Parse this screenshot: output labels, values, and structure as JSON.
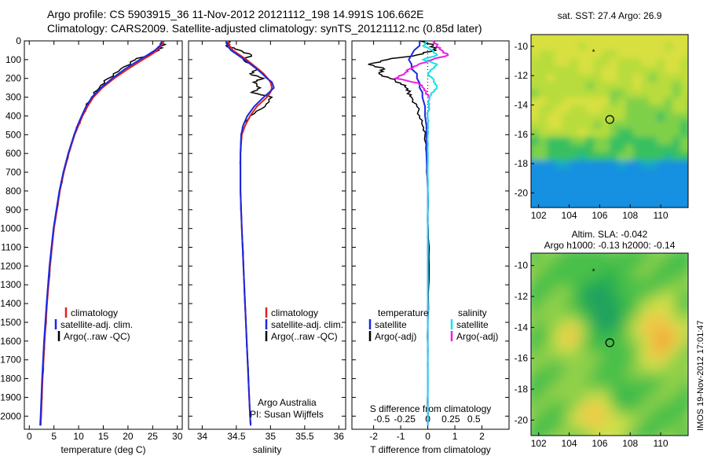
{
  "header": {
    "line1": "Argo profile: CS 5903915_36 11-Nov-2012 20121112_198 14.991S 106.662E",
    "line2": "Climatology: CARS2009. Satellite-adjusted climatology: synTS_20121112.nc (0.85d later)"
  },
  "colors": {
    "climatology": "#e0201a",
    "satellite": "#1a28e0",
    "argo": "#000000",
    "satellite_salinity": "#18e0e8",
    "argo_adj_salinity": "#e820e0"
  },
  "chart_data": [
    {
      "type": "line",
      "name": "temperature-profile",
      "xlabel": "temperature (deg C)",
      "xlim": [
        -1,
        31
      ],
      "xticks": [
        "0",
        "5",
        "10",
        "15",
        "20",
        "25",
        "30"
      ],
      "ylim": [
        2070,
        0
      ],
      "yticks": [
        "0",
        "100",
        "200",
        "300",
        "400",
        "500",
        "600",
        "700",
        "800",
        "900",
        "1000",
        "1100",
        "1200",
        "1300",
        "1400",
        "1500",
        "1600",
        "1700",
        "1800",
        "1900",
        "2000"
      ],
      "legend": [
        "climatology",
        "satellite-adj. clim.",
        "Argo(..raw -QC)"
      ],
      "depth": [
        0,
        25,
        50,
        75,
        100,
        150,
        200,
        250,
        300,
        350,
        400,
        450,
        500,
        600,
        700,
        800,
        900,
        1000,
        1200,
        1400,
        1600,
        1800,
        2000,
        2050
      ],
      "series": [
        {
          "name": "climatology",
          "values": [
            27.2,
            26.8,
            26.0,
            24.6,
            23.0,
            20.0,
            17.2,
            14.8,
            13.0,
            11.8,
            10.8,
            10.0,
            9.2,
            8.0,
            7.0,
            6.2,
            5.6,
            5.0,
            4.2,
            3.6,
            3.1,
            2.7,
            2.4,
            2.3
          ]
        },
        {
          "name": "satellite-adj. clim.",
          "values": [
            26.9,
            26.5,
            25.5,
            24.0,
            22.4,
            19.4,
            16.8,
            14.5,
            12.7,
            11.5,
            10.6,
            9.8,
            9.1,
            7.9,
            6.9,
            6.1,
            5.5,
            4.9,
            4.1,
            3.5,
            3.0,
            2.6,
            2.3,
            2.2
          ]
        },
        {
          "name": "Argo(..raw -QC)",
          "values": [
            26.9,
            27.0,
            26.3,
            24.2,
            21.5,
            18.5,
            16.0,
            14.2,
            12.6,
            11.6,
            10.7,
            9.9,
            9.2,
            8.0,
            7.0,
            6.2,
            5.6,
            5.0,
            4.2,
            3.6,
            3.1,
            2.7,
            2.4,
            2.3
          ]
        }
      ]
    },
    {
      "type": "line",
      "name": "salinity-profile",
      "xlabel": "salinity",
      "xlim": [
        33.8,
        36.1
      ],
      "xticks": [
        "34",
        "34.5",
        "35",
        "35.5",
        "36"
      ],
      "ylim": [
        2070,
        0
      ],
      "legend": [
        "climatology",
        "satellite-adj. clim.",
        "Argo(..raw -QC)"
      ],
      "annotation": [
        "Argo Australia",
        "PI: Susan Wijffels"
      ],
      "depth": [
        0,
        25,
        50,
        75,
        100,
        150,
        175,
        200,
        220,
        250,
        275,
        300,
        350,
        400,
        450,
        500,
        600,
        800,
        1000,
        1500,
        2000,
        2050
      ],
      "series": [
        {
          "name": "climatology",
          "values": [
            34.38,
            34.4,
            34.45,
            34.55,
            34.65,
            34.82,
            34.9,
            34.96,
            35.0,
            35.02,
            35.0,
            34.95,
            34.8,
            34.7,
            34.63,
            34.58,
            34.56,
            34.56,
            34.58,
            34.64,
            34.7,
            34.71
          ]
        },
        {
          "name": "satellite-adj. clim.",
          "values": [
            34.35,
            34.37,
            34.42,
            34.52,
            34.62,
            34.8,
            34.88,
            34.95,
            35.02,
            35.05,
            34.98,
            34.9,
            34.76,
            34.66,
            34.6,
            34.57,
            34.56,
            34.56,
            34.58,
            34.64,
            34.7,
            34.71
          ]
        },
        {
          "name": "Argo(..raw -QC)",
          "values": [
            34.4,
            34.35,
            34.55,
            34.72,
            34.6,
            34.8,
            34.7,
            34.9,
            34.75,
            34.85,
            34.72,
            35.02,
            34.92,
            34.7,
            34.6,
            34.57,
            34.56,
            34.56,
            34.58,
            34.64,
            34.7,
            34.71
          ]
        }
      ]
    },
    {
      "type": "line",
      "name": "difference-profile",
      "xlabel_top": "S difference from climatology",
      "xticks_top": [
        "-0.5",
        "-0.25",
        "0",
        "0.25",
        "0.5"
      ],
      "xlabel": "T difference from climatology",
      "xlim": [
        -2.8,
        3.0
      ],
      "xticks": [
        "-2",
        "-1",
        "0",
        "1",
        "2"
      ],
      "ylim": [
        2070,
        0
      ],
      "legend_temperature": [
        "temperature",
        "satellite",
        "Argo(-adj)"
      ],
      "legend_salinity": [
        "salinity",
        "satellite",
        "Argo(-adj)"
      ],
      "depth": [
        0,
        25,
        50,
        75,
        100,
        125,
        150,
        175,
        200,
        225,
        250,
        275,
        300,
        350,
        400,
        450,
        500,
        600,
        800,
        1000,
        1200,
        1500,
        1800,
        2050
      ],
      "series": [
        {
          "name": "temperature satellite",
          "values": [
            -0.3,
            -0.3,
            -0.5,
            -0.6,
            -0.7,
            -0.6,
            -0.6,
            -0.4,
            -0.4,
            -0.3,
            -0.3,
            -0.2,
            -0.2,
            -0.1,
            -0.1,
            -0.05,
            -0.05,
            -0.05,
            0,
            0,
            0,
            0,
            0,
            0
          ]
        },
        {
          "name": "temperature Argo(-adj)",
          "values": [
            -0.3,
            0.2,
            0.3,
            -0.4,
            -1.5,
            -2.2,
            -1.6,
            -1.8,
            -1.4,
            -1.0,
            -0.8,
            -0.7,
            -0.6,
            -0.4,
            -0.3,
            -0.2,
            -0.1,
            -0.05,
            0,
            0.02,
            0.05,
            0,
            0,
            0
          ]
        },
        {
          "name": "salinity satellite",
          "values": [
            0,
            -0.05,
            0.05,
            0.1,
            -0.05,
            0.1,
            0.05,
            0,
            0.05,
            0.08,
            0.1,
            0.05,
            0.02,
            0.01,
            0,
            0,
            0,
            0,
            0,
            0,
            0,
            0,
            0,
            0
          ]
        },
        {
          "name": "salinity Argo(-adj)",
          "values": [
            0.05,
            0.1,
            0.15,
            0.22,
            0.05,
            -0.1,
            -0.2,
            -0.25,
            -0.35,
            -0.1,
            -0.05,
            -0.02,
            0.02,
            0.01,
            0,
            0,
            0,
            0,
            0,
            0,
            0,
            0,
            0,
            0
          ]
        }
      ]
    },
    {
      "type": "heatmap",
      "name": "sst-map",
      "title": "sat. SST: 27.4  Argo: 26.9",
      "xlim": [
        101.5,
        111.8
      ],
      "ylim": [
        -21,
        -9.2
      ],
      "xticks": [
        "102",
        "104",
        "106",
        "108",
        "110"
      ],
      "yticks": [
        "-10",
        "-12",
        "-14",
        "-16",
        "-18",
        "-20"
      ],
      "float_lon": 106.662,
      "float_lat": -14.991,
      "marker_lon": 105.6,
      "marker_lat": -10.4
    },
    {
      "type": "heatmap",
      "name": "sla-map",
      "title1": "Altim. SLA: -0.042",
      "title2": "Argo h1000: -0.13  h2000: -0.14",
      "xlim": [
        101.5,
        111.8
      ],
      "ylim": [
        -21,
        -9.2
      ],
      "xticks": [
        "102",
        "104",
        "106",
        "108",
        "110"
      ],
      "yticks": [
        "-10",
        "-12",
        "-14",
        "-16",
        "-18",
        "-20"
      ],
      "float_lon": 106.662,
      "float_lat": -14.991,
      "marker_lon": 105.6,
      "marker_lat": -10.4
    }
  ],
  "footer": {
    "stamp": "IMOS 19-Nov-2012 17:01:47"
  }
}
